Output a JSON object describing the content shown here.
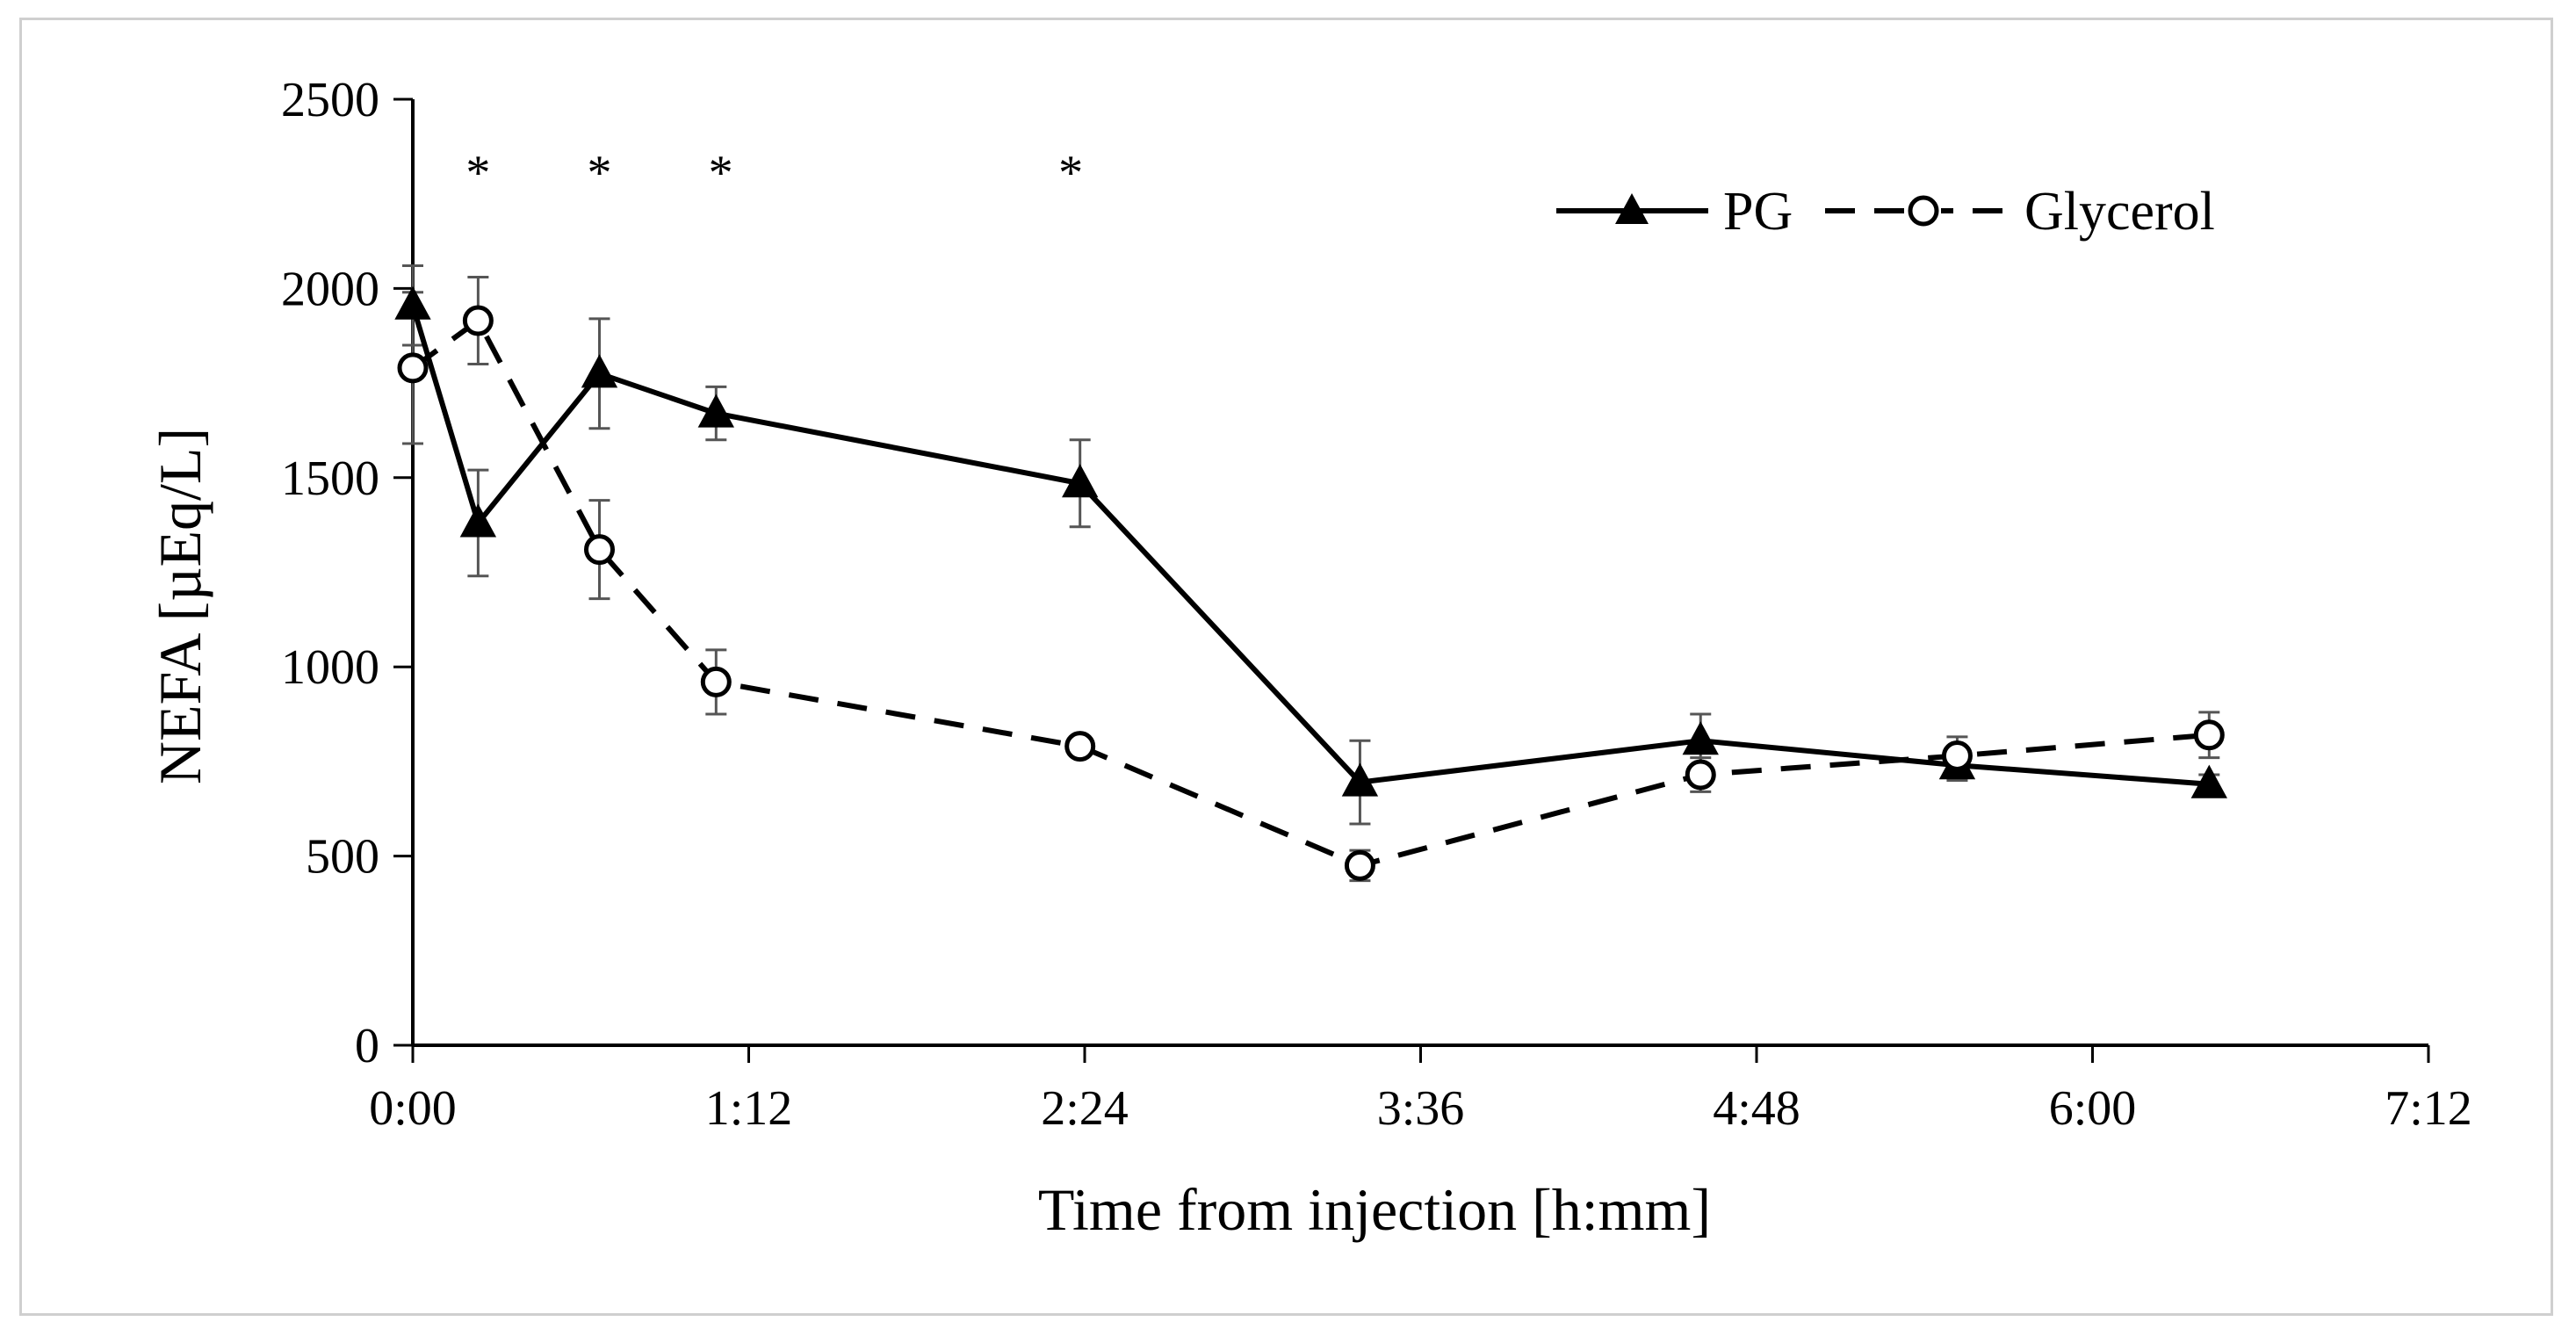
{
  "chart_data": {
    "type": "line",
    "title": "",
    "xlabel": "Time from injection [h:mm]",
    "ylabel": "NEFA  [µEq/L]",
    "xlim_minutes": [
      0,
      432
    ],
    "ylim": [
      0,
      2500
    ],
    "x_ticks": [
      {
        "minutes": 0,
        "label": "0:00"
      },
      {
        "minutes": 72,
        "label": "1:12"
      },
      {
        "minutes": 144,
        "label": "2:24"
      },
      {
        "minutes": 216,
        "label": "3:36"
      },
      {
        "minutes": 288,
        "label": "4:48"
      },
      {
        "minutes": 360,
        "label": "6:00"
      },
      {
        "minutes": 432,
        "label": "7:12"
      }
    ],
    "y_ticks": [
      {
        "value": 0,
        "label": "0"
      },
      {
        "value": 500,
        "label": "500"
      },
      {
        "value": 1000,
        "label": "1000"
      },
      {
        "value": 1500,
        "label": "1500"
      },
      {
        "value": 2000,
        "label": "2000"
      },
      {
        "value": 2500,
        "label": "2500"
      }
    ],
    "grid": false,
    "legend_position": "top-right",
    "series": [
      {
        "name": "PG",
        "style": "solid",
        "marker": "filled-triangle",
        "x_minutes": [
          0,
          14,
          40,
          65,
          143,
          203,
          276,
          331,
          385
        ],
        "values": [
          1955,
          1380,
          1775,
          1670,
          1485,
          695,
          805,
          740,
          690
        ],
        "errors": [
          105,
          140,
          145,
          70,
          115,
          110,
          70,
          40,
          25
        ]
      },
      {
        "name": "Glycerol",
        "style": "dashed",
        "marker": "open-circle",
        "x_minutes": [
          0,
          14,
          40,
          65,
          143,
          203,
          276,
          331,
          385
        ],
        "values": [
          1790,
          1915,
          1310,
          960,
          790,
          475,
          715,
          765,
          820
        ],
        "errors": [
          200,
          115,
          130,
          85,
          25,
          40,
          45,
          50,
          60
        ]
      }
    ],
    "annotations": [
      {
        "text": "*",
        "x_minutes": 14
      },
      {
        "text": "*",
        "x_minutes": 40
      },
      {
        "text": "*",
        "x_minutes": 66
      },
      {
        "text": "*",
        "x_minutes": 141
      }
    ],
    "colors": {
      "line": "#000000",
      "error_bar": "#555555",
      "axis": "#000000"
    }
  }
}
